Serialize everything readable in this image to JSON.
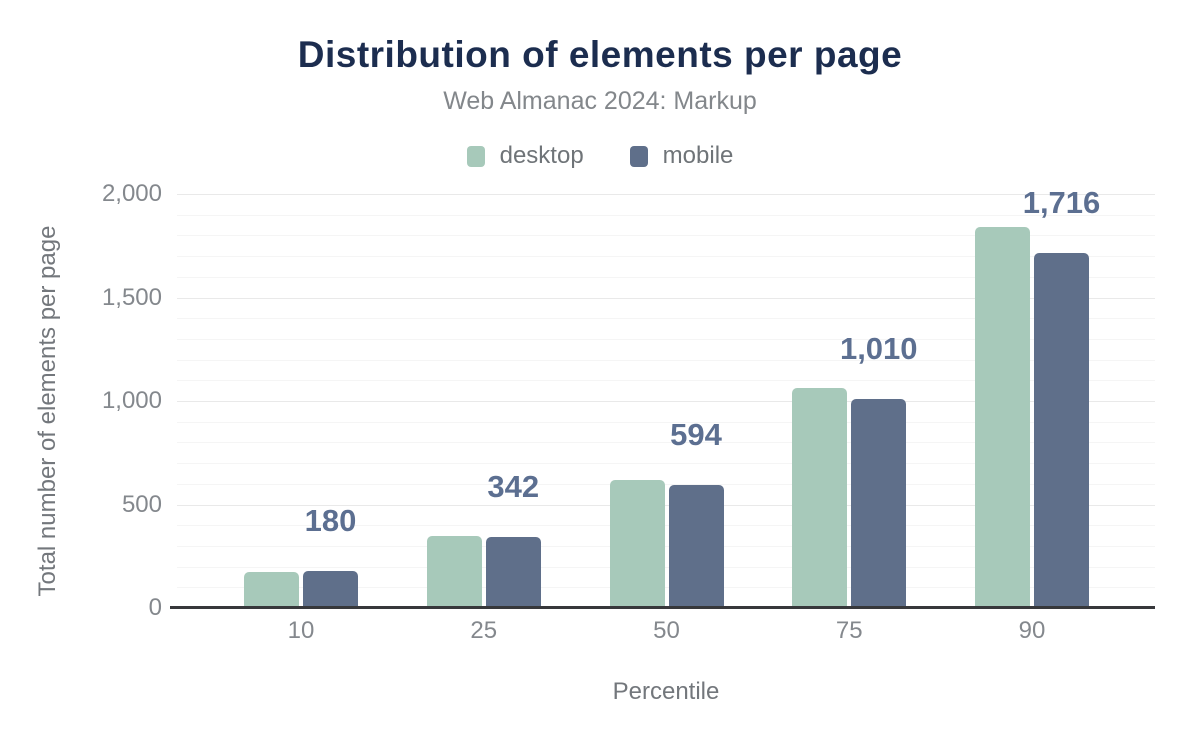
{
  "title": "Distribution of elements per page",
  "subtitle": "Web Almanac 2024: Markup",
  "legend": [
    {
      "name": "desktop",
      "label": "desktop",
      "color": "#a7c9ba"
    },
    {
      "name": "mobile",
      "label": "mobile",
      "color": "#5f6f8a"
    }
  ],
  "y_axis": {
    "title": "Total number of elements per page",
    "ticks": [
      {
        "label": "2,000",
        "value": 2000
      },
      {
        "label": "1,500",
        "value": 1500
      },
      {
        "label": "1,000",
        "value": 1000
      },
      {
        "label": "500",
        "value": 500
      },
      {
        "label": "0",
        "value": 0
      }
    ]
  },
  "x_axis": {
    "title": "Percentile"
  },
  "chart_data": {
    "type": "bar",
    "title": "Distribution of elements per page",
    "subtitle": "Web Almanac 2024: Markup",
    "categories": [
      "10",
      "25",
      "50",
      "75",
      "90"
    ],
    "series": [
      {
        "name": "desktop",
        "color": "#a7c9ba",
        "values": [
          175,
          350,
          618,
          1065,
          1840
        ]
      },
      {
        "name": "mobile",
        "color": "#5f6f8a",
        "values": [
          180,
          342,
          594,
          1010,
          1716
        ]
      }
    ],
    "data_labels": {
      "series": "mobile",
      "values": [
        "180",
        "342",
        "594",
        "1,010",
        "1,716"
      ]
    },
    "xlabel": "Percentile",
    "ylabel": "Total number of elements per page",
    "ylim": [
      0,
      2000
    ],
    "y_major_ticks": [
      0,
      500,
      1000,
      1500,
      2000
    ],
    "y_minor_step": 100,
    "grid": true,
    "legend_position": "top"
  },
  "colors": {
    "title": "#1c2d4f",
    "subtitle": "#83878b",
    "desktop_bar": "#a7c9ba",
    "mobile_bar": "#5f6f8a",
    "value_label": "#5c6f91",
    "axis_text": "#84888d",
    "axis_line": "#37383b",
    "major_grid": "#e9e9e9",
    "minor_grid": "#f5f5f5",
    "background": "#ffffff"
  }
}
